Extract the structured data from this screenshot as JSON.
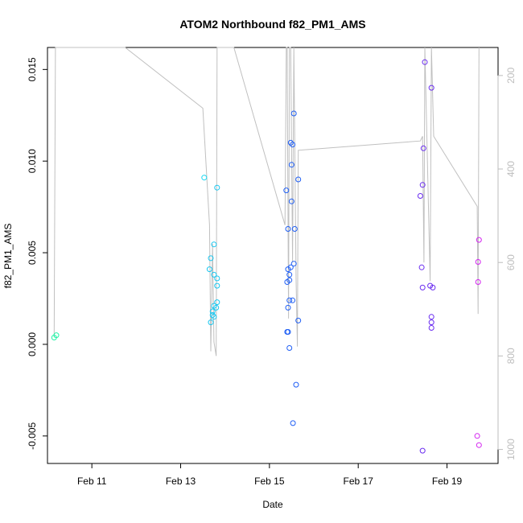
{
  "chart_data": {
    "type": "scatter",
    "title": "ATOM2 Northbound f82_PM1_AMS",
    "xlabel": "Date",
    "ylabel": "f82_PM1_AMS",
    "x_unit": "days (Feb, 2014-style calendar day)",
    "xlim": [
      10.0,
      20.15
    ],
    "ylim": [
      -0.0065,
      0.0162
    ],
    "x_ticks": [
      11,
      13,
      15,
      17,
      19
    ],
    "x_tick_labels": [
      "Feb 11",
      "Feb 13",
      "Feb 15",
      "Feb 17",
      "Feb 19"
    ],
    "y_ticks": [
      -0.005,
      0.0,
      0.005,
      0.01,
      0.015
    ],
    "y_tick_labels": [
      "-0.005",
      "0.000",
      "0.005",
      "0.010",
      "0.015"
    ],
    "y2_ticks": [
      200,
      400,
      600,
      800,
      1000
    ],
    "y2_tick_labels": [
      "200",
      "400",
      "600",
      "800",
      "1000"
    ],
    "y2_lim": [
      1030,
      140
    ],
    "grid": false,
    "points": [
      {
        "x": 10.15,
        "y": 0.00037,
        "color": "#22f3a6"
      },
      {
        "x": 10.2,
        "y": 0.0005,
        "color": "#22f3a6"
      },
      {
        "x": 13.53,
        "y": 0.0091,
        "color": "#17d7f0"
      },
      {
        "x": 13.82,
        "y": 0.00855,
        "color": "#19c7f0"
      },
      {
        "x": 13.75,
        "y": 0.00545,
        "color": "#19c7f0"
      },
      {
        "x": 13.68,
        "y": 0.0047,
        "color": "#19c7f0"
      },
      {
        "x": 13.65,
        "y": 0.0041,
        "color": "#19c7f0"
      },
      {
        "x": 13.75,
        "y": 0.0038,
        "color": "#19c7f0"
      },
      {
        "x": 13.82,
        "y": 0.0036,
        "color": "#19c7f0"
      },
      {
        "x": 13.82,
        "y": 0.0032,
        "color": "#19c7f0"
      },
      {
        "x": 13.82,
        "y": 0.0023,
        "color": "#19c7f0"
      },
      {
        "x": 13.75,
        "y": 0.0021,
        "color": "#19c7f0"
      },
      {
        "x": 13.8,
        "y": 0.002,
        "color": "#19c7f0"
      },
      {
        "x": 13.72,
        "y": 0.0018,
        "color": "#19c7f0"
      },
      {
        "x": 13.72,
        "y": 0.0016,
        "color": "#19c7f0"
      },
      {
        "x": 13.75,
        "y": 0.0015,
        "color": "#19c7f0"
      },
      {
        "x": 13.68,
        "y": 0.0012,
        "color": "#19c7f0"
      },
      {
        "x": 15.38,
        "y": 0.0084,
        "color": "#1f5ff5"
      },
      {
        "x": 15.42,
        "y": 0.0063,
        "color": "#1f5ff5"
      },
      {
        "x": 15.42,
        "y": 0.0041,
        "color": "#1f5ff5"
      },
      {
        "x": 15.48,
        "y": 0.0042,
        "color": "#1f5ff5"
      },
      {
        "x": 15.45,
        "y": 0.0038,
        "color": "#1f5ff5"
      },
      {
        "x": 15.55,
        "y": 0.0044,
        "color": "#1f5ff5"
      },
      {
        "x": 15.45,
        "y": 0.0035,
        "color": "#1f5ff5"
      },
      {
        "x": 15.4,
        "y": 0.0034,
        "color": "#1f5ff5"
      },
      {
        "x": 15.45,
        "y": 0.0024,
        "color": "#1f5ff5"
      },
      {
        "x": 15.52,
        "y": 0.0024,
        "color": "#1f5ff5"
      },
      {
        "x": 15.42,
        "y": 0.002,
        "color": "#1f5ff5"
      },
      {
        "x": 15.4,
        "y": 0.00068,
        "color": "#1f5ff5"
      },
      {
        "x": 15.42,
        "y": 0.00068,
        "color": "#1f5ff5"
      },
      {
        "x": 15.45,
        "y": -0.0002,
        "color": "#1f5ff5"
      },
      {
        "x": 15.48,
        "y": 0.011,
        "color": "#1f5ff5"
      },
      {
        "x": 15.52,
        "y": 0.0109,
        "color": "#1f5ff5"
      },
      {
        "x": 15.55,
        "y": 0.0126,
        "color": "#1f5ff5"
      },
      {
        "x": 15.5,
        "y": 0.0098,
        "color": "#1f5ff5"
      },
      {
        "x": 15.65,
        "y": 0.009,
        "color": "#1f5ff5"
      },
      {
        "x": 15.5,
        "y": 0.0078,
        "color": "#1f5ff5"
      },
      {
        "x": 15.57,
        "y": 0.0063,
        "color": "#1f5ff5"
      },
      {
        "x": 15.65,
        "y": 0.0013,
        "color": "#1f5ff5"
      },
      {
        "x": 15.6,
        "y": -0.0022,
        "color": "#1f5ff5"
      },
      {
        "x": 15.53,
        "y": -0.0043,
        "color": "#1f5ff5"
      },
      {
        "x": 18.5,
        "y": 0.0154,
        "color": "#6a2cf0"
      },
      {
        "x": 18.65,
        "y": 0.014,
        "color": "#6a2cf0"
      },
      {
        "x": 18.47,
        "y": 0.0107,
        "color": "#6a2cf0"
      },
      {
        "x": 18.45,
        "y": 0.0087,
        "color": "#6a2cf0"
      },
      {
        "x": 18.4,
        "y": 0.0081,
        "color": "#6a2cf0"
      },
      {
        "x": 18.43,
        "y": 0.0042,
        "color": "#6a2cf0"
      },
      {
        "x": 18.45,
        "y": 0.0031,
        "color": "#6a2cf0"
      },
      {
        "x": 18.62,
        "y": 0.0032,
        "color": "#6a2cf0"
      },
      {
        "x": 18.68,
        "y": 0.0031,
        "color": "#6a2cf0"
      },
      {
        "x": 18.65,
        "y": 0.0015,
        "color": "#6a2cf0"
      },
      {
        "x": 18.65,
        "y": 0.0012,
        "color": "#6a2cf0"
      },
      {
        "x": 18.65,
        "y": 0.0009,
        "color": "#6a2cf0"
      },
      {
        "x": 18.45,
        "y": -0.0058,
        "color": "#6a2cf0"
      },
      {
        "x": 19.72,
        "y": 0.0057,
        "color": "#d424f0"
      },
      {
        "x": 19.7,
        "y": 0.0045,
        "color": "#d424f0"
      },
      {
        "x": 19.7,
        "y": 0.0034,
        "color": "#d424f0"
      },
      {
        "x": 19.68,
        "y": -0.005,
        "color": "#d424f0"
      },
      {
        "x": 19.72,
        "y": -0.0055,
        "color": "#d424f0"
      }
    ],
    "altitude_line": {
      "color": "#c0c0c0",
      "points": [
        [
          10.15,
          760
        ],
        [
          10.18,
          140
        ],
        [
          10.25,
          140
        ],
        [
          11.75,
          140
        ],
        [
          13.5,
          270
        ],
        [
          13.65,
          520
        ],
        [
          13.68,
          790
        ],
        [
          13.72,
          560
        ],
        [
          13.75,
          770
        ],
        [
          13.8,
          800
        ],
        [
          13.82,
          140
        ],
        [
          14.2,
          140
        ],
        [
          15.35,
          520
        ],
        [
          15.38,
          140
        ],
        [
          15.4,
          140
        ],
        [
          15.43,
          720
        ],
        [
          15.45,
          140
        ],
        [
          15.48,
          140
        ],
        [
          15.52,
          600
        ],
        [
          15.55,
          140
        ],
        [
          15.6,
          640
        ],
        [
          15.63,
          780
        ],
        [
          15.65,
          360
        ],
        [
          18.4,
          340
        ],
        [
          18.45,
          330
        ],
        [
          18.48,
          600
        ],
        [
          18.5,
          140
        ],
        [
          18.62,
          640
        ],
        [
          18.65,
          140
        ],
        [
          18.7,
          330
        ],
        [
          19.68,
          480
        ],
        [
          19.7,
          710
        ],
        [
          19.72,
          140
        ]
      ]
    }
  }
}
